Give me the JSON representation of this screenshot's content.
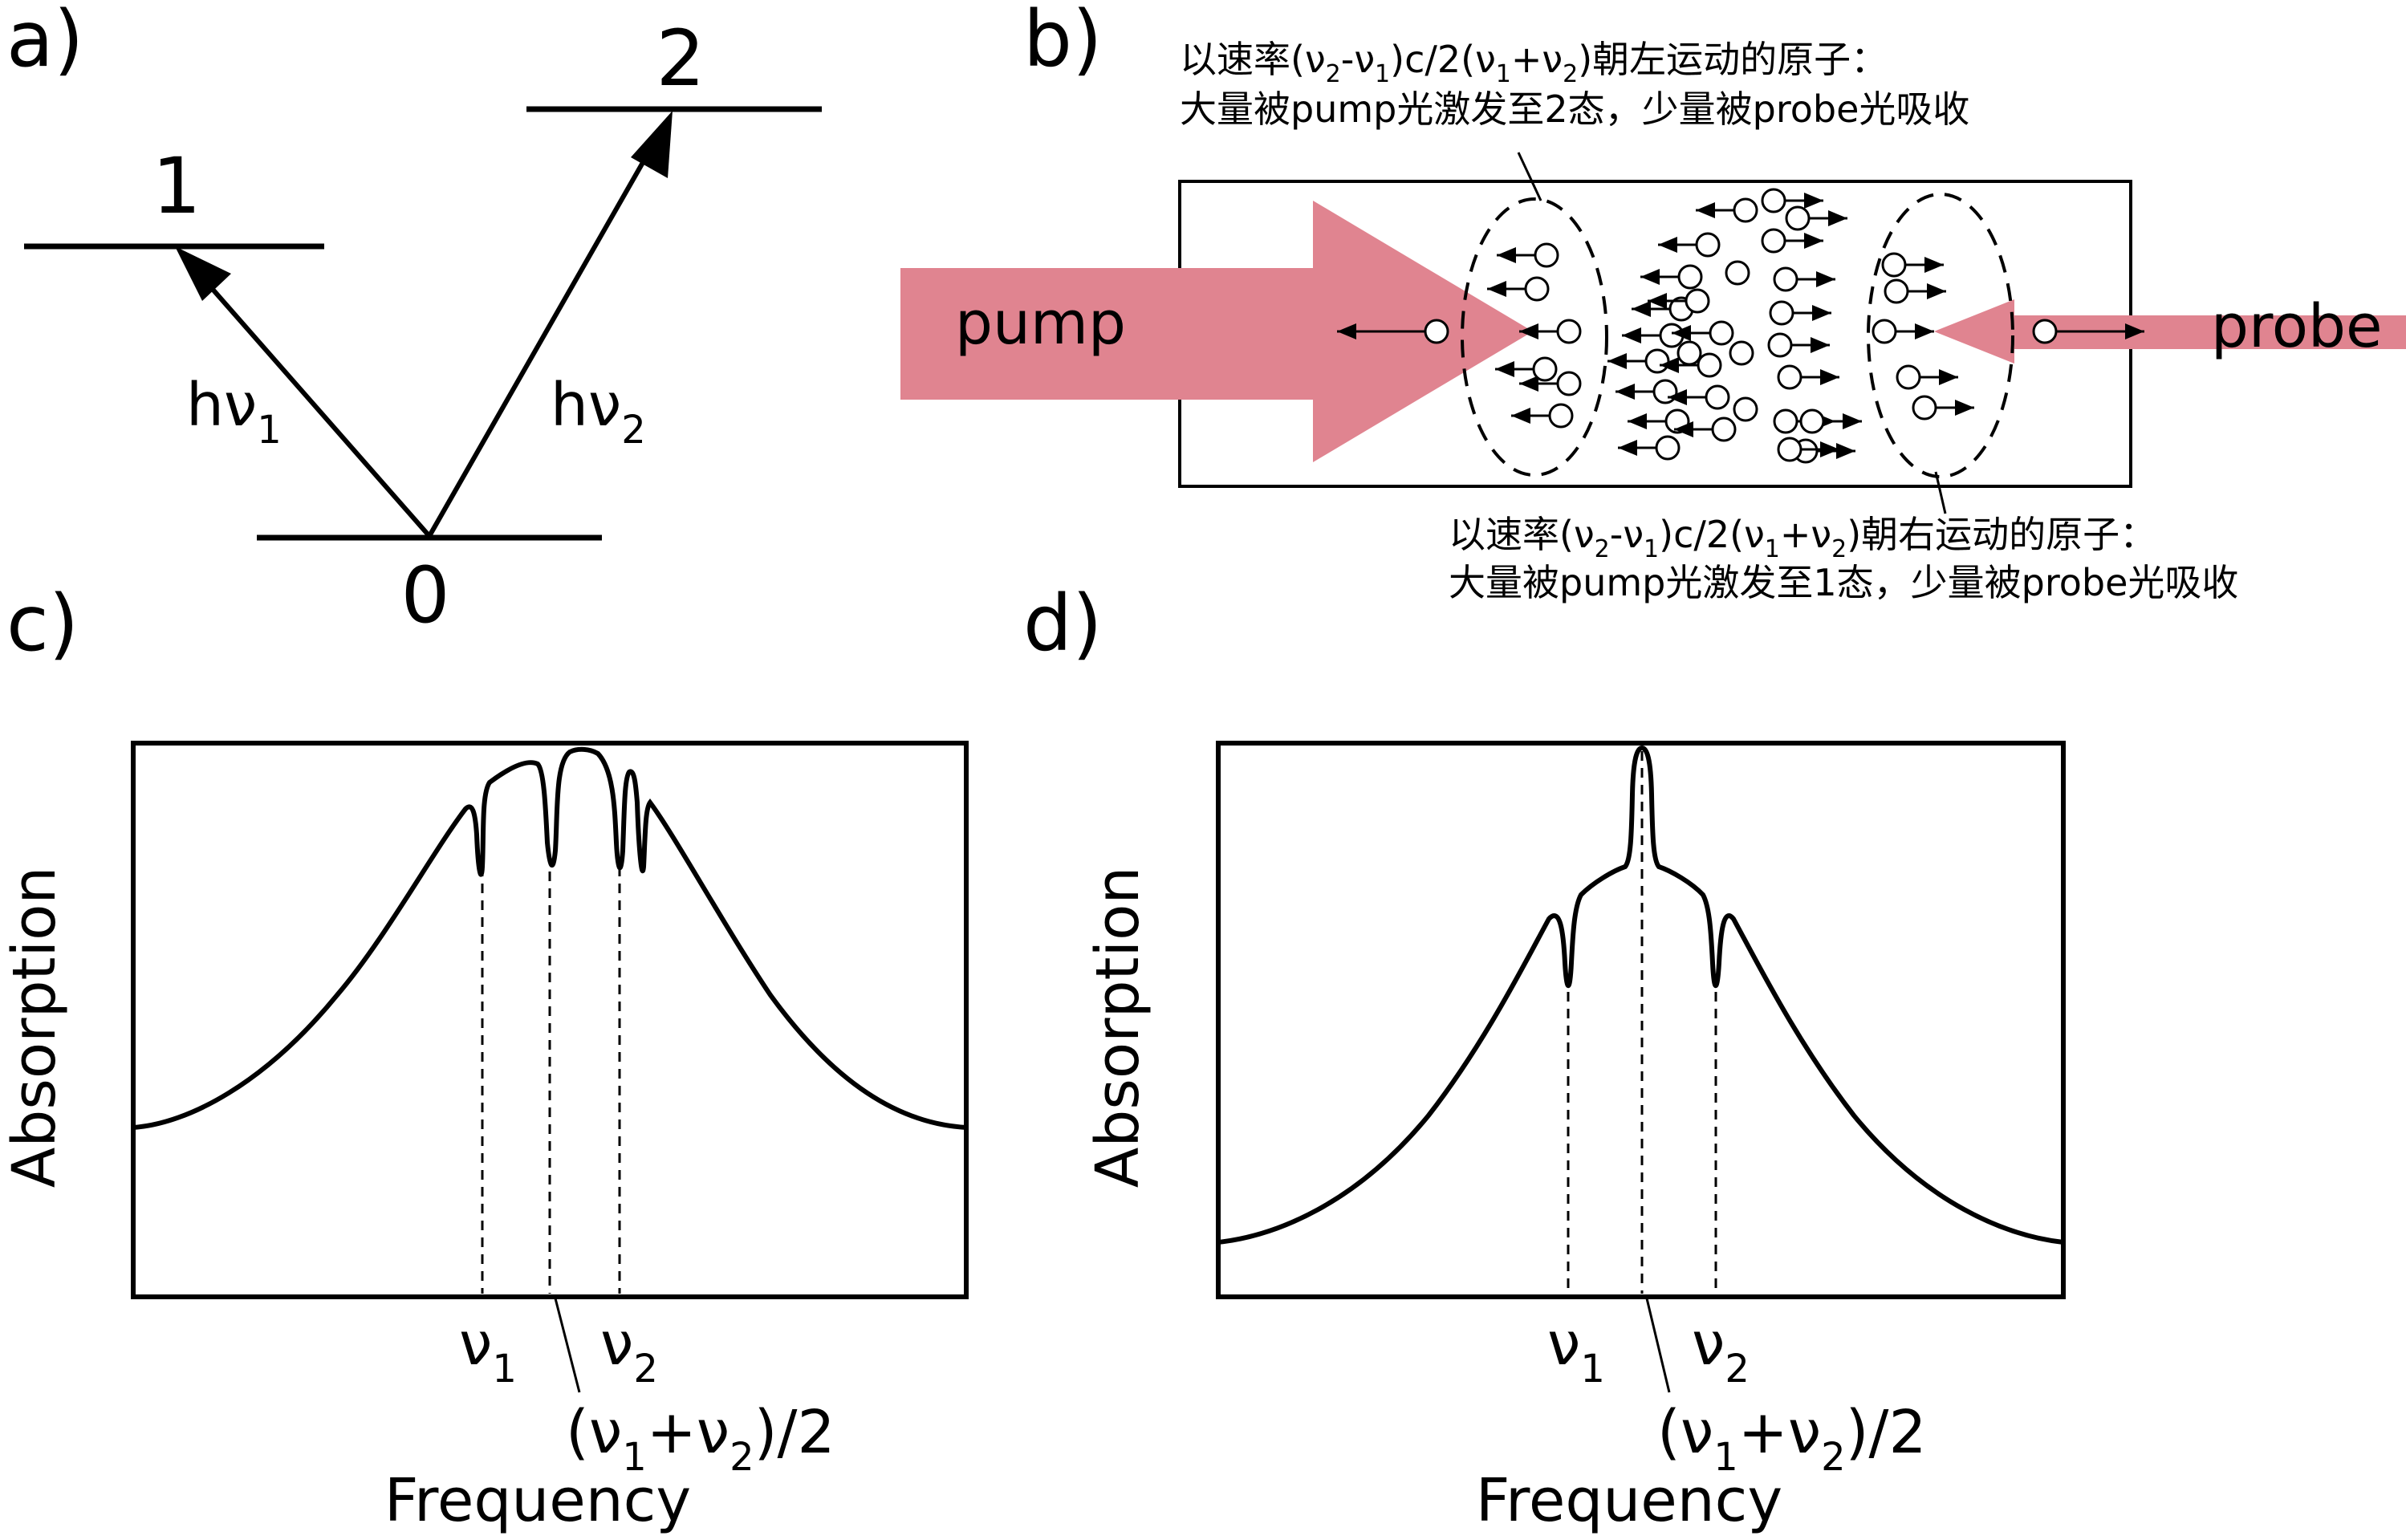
{
  "panels": {
    "a": {
      "tag": "a)",
      "levels": {
        "ground": "0",
        "level1": "1",
        "level2": "2"
      },
      "transitions": [
        {
          "main": "hν",
          "sub": "1"
        },
        {
          "main": "hν",
          "sub": "2"
        }
      ]
    },
    "b": {
      "tag": "b)",
      "pump_label": "pump",
      "probe_label": "probe",
      "pump_color": "#e08490",
      "probe_color": "#e08490",
      "top_note": {
        "line1": {
          "p1": "以速率(ν",
          "s1": "2",
          "p2": "-ν",
          "s2": "1",
          "p3": ")c/2(ν",
          "s3": "1",
          "p4": "+ν",
          "s4": "2",
          "p5": ")朝左运动的原子："
        },
        "line2": "大量被pump光激发至2态，少量被probe光吸收"
      },
      "bottom_note": {
        "line1": {
          "p1": "以速率(ν",
          "s1": "2",
          "p2": "-ν",
          "s2": "1",
          "p3": ")c/2(ν",
          "s3": "1",
          "p4": "+ν",
          "s4": "2",
          "p5": ")朝右运动的原子："
        },
        "line2": "大量被pump光激发至1态，少量被probe光吸收"
      }
    },
    "c": {
      "tag": "c)",
      "ylabel": "Absorption",
      "xlabel": "Frequency",
      "nu1": {
        "main": "ν",
        "sub": "1"
      },
      "nu2": {
        "main": "ν",
        "sub": "2"
      },
      "mid": {
        "p1": "(ν",
        "s1": "1",
        "p2": "+ν",
        "s2": "2",
        "p3": ")/2"
      }
    },
    "d": {
      "tag": "d)",
      "ylabel": "Absorption",
      "xlabel": "Frequency",
      "nu1": {
        "main": "ν",
        "sub": "1"
      },
      "nu2": {
        "main": "ν",
        "sub": "2"
      },
      "mid": {
        "p1": "(ν",
        "s1": "1",
        "p2": "+ν",
        "s2": "2",
        "p3": ")/2"
      }
    }
  }
}
